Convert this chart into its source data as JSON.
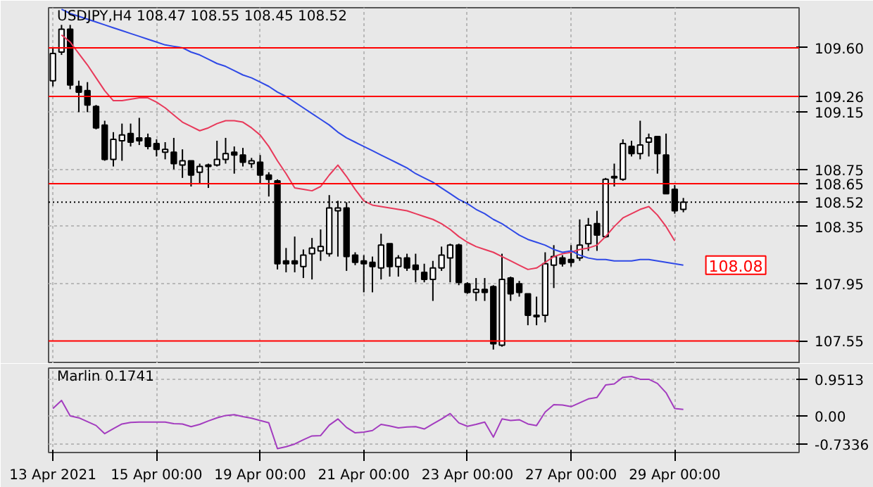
{
  "chart_data": [
    {
      "type": "candlestick",
      "title": "USDJPY,H4 108.47 108.55 108.45 108.52",
      "categories": [
        null,
        null,
        null,
        null,
        null,
        null,
        null,
        null,
        null,
        null,
        null,
        null,
        null,
        null,
        null,
        null,
        null,
        null,
        null,
        null,
        null,
        null,
        null,
        null,
        null,
        null,
        null,
        null,
        null,
        null,
        null,
        null,
        null,
        null,
        null,
        null,
        null,
        null,
        null,
        null,
        null,
        null,
        null,
        null,
        null,
        null,
        null,
        null,
        null,
        null,
        null,
        null,
        null,
        null,
        null,
        null,
        null,
        null,
        null,
        null,
        null,
        null,
        null,
        null,
        null,
        null,
        null,
        null,
        null,
        null,
        null,
        null,
        null,
        null
      ],
      "ohlc": [
        [
          109.37,
          109.6,
          109.33,
          109.56
        ],
        [
          109.57,
          109.76,
          109.55,
          109.73
        ],
        [
          109.73,
          109.76,
          109.31,
          109.34
        ],
        [
          109.33,
          109.37,
          109.15,
          109.29
        ],
        [
          109.3,
          109.36,
          109.15,
          109.2
        ],
        [
          109.19,
          109.2,
          109.03,
          109.04
        ],
        [
          109.06,
          109.09,
          108.81,
          108.82
        ],
        [
          108.82,
          109.01,
          108.77,
          108.96
        ],
        [
          108.95,
          109.07,
          108.81,
          108.99
        ],
        [
          109.0,
          109.07,
          108.91,
          108.94
        ],
        [
          108.97,
          109.11,
          108.92,
          108.95
        ],
        [
          108.97,
          109.0,
          108.89,
          108.91
        ],
        [
          108.93,
          108.96,
          108.84,
          108.89
        ],
        [
          108.87,
          108.94,
          108.82,
          108.89
        ],
        [
          108.87,
          108.97,
          108.75,
          108.79
        ],
        [
          108.78,
          108.89,
          108.69,
          108.81
        ],
        [
          108.81,
          108.81,
          108.63,
          108.71
        ],
        [
          108.73,
          108.79,
          108.65,
          108.77
        ],
        [
          108.78,
          108.79,
          108.62,
          108.77
        ],
        [
          108.78,
          108.95,
          108.77,
          108.82
        ],
        [
          108.82,
          108.97,
          108.79,
          108.86
        ],
        [
          108.87,
          108.91,
          108.72,
          108.85
        ],
        [
          108.85,
          108.9,
          108.77,
          108.8
        ],
        [
          108.79,
          108.83,
          108.76,
          108.81
        ],
        [
          108.8,
          108.85,
          108.65,
          108.71
        ],
        [
          108.71,
          108.73,
          108.56,
          108.68
        ],
        [
          108.67,
          108.68,
          108.05,
          108.09
        ],
        [
          108.11,
          108.2,
          108.03,
          108.09
        ],
        [
          108.11,
          108.28,
          108.03,
          108.09
        ],
        [
          108.07,
          108.19,
          107.99,
          108.15
        ],
        [
          108.16,
          108.27,
          107.98,
          108.2
        ],
        [
          108.18,
          108.33,
          108.11,
          108.21
        ],
        [
          108.16,
          108.57,
          108.14,
          108.48
        ],
        [
          108.46,
          108.53,
          108.14,
          108.48
        ],
        [
          108.48,
          108.52,
          108.04,
          108.14
        ],
        [
          108.15,
          108.17,
          108.08,
          108.1
        ],
        [
          108.11,
          108.15,
          107.89,
          108.09
        ],
        [
          108.1,
          108.14,
          107.89,
          108.07
        ],
        [
          108.06,
          108.3,
          107.98,
          108.22
        ],
        [
          108.23,
          108.23,
          108.0,
          108.07
        ],
        [
          108.07,
          108.15,
          108.0,
          108.13
        ],
        [
          108.13,
          108.16,
          108.04,
          108.06
        ],
        [
          108.08,
          108.16,
          107.96,
          108.05
        ],
        [
          108.03,
          108.09,
          107.96,
          107.98
        ],
        [
          107.98,
          108.11,
          107.83,
          108.06
        ],
        [
          108.06,
          108.21,
          108.04,
          108.15
        ],
        [
          108.13,
          108.23,
          107.96,
          108.22
        ],
        [
          108.22,
          108.23,
          107.94,
          107.96
        ],
        [
          107.95,
          107.96,
          107.88,
          107.89
        ],
        [
          107.89,
          107.99,
          107.83,
          107.91
        ],
        [
          107.91,
          107.99,
          107.83,
          107.89
        ],
        [
          107.93,
          107.94,
          107.49,
          107.53
        ],
        [
          107.52,
          108.16,
          107.51,
          107.98
        ],
        [
          107.99,
          108.0,
          107.83,
          107.88
        ],
        [
          107.95,
          107.97,
          107.86,
          107.89
        ],
        [
          107.88,
          107.88,
          107.66,
          107.73
        ],
        [
          107.72,
          107.86,
          107.66,
          107.73
        ],
        [
          107.73,
          108.17,
          107.68,
          108.09
        ],
        [
          108.08,
          108.22,
          107.92,
          108.14
        ],
        [
          108.13,
          108.15,
          108.07,
          108.09
        ],
        [
          108.12,
          108.22,
          108.07,
          108.1
        ],
        [
          108.13,
          108.4,
          108.11,
          108.22
        ],
        [
          108.23,
          108.41,
          108.18,
          108.36
        ],
        [
          108.37,
          108.46,
          108.18,
          108.29
        ],
        [
          108.28,
          108.69,
          108.27,
          108.68
        ],
        [
          108.69,
          108.79,
          108.63,
          108.7
        ],
        [
          108.68,
          108.96,
          108.67,
          108.93
        ],
        [
          108.91,
          108.95,
          108.84,
          108.86
        ],
        [
          108.86,
          109.09,
          108.82,
          108.92
        ],
        [
          108.94,
          109.0,
          108.84,
          108.97
        ],
        [
          108.98,
          108.98,
          108.72,
          108.86
        ],
        [
          108.85,
          109.0,
          108.58,
          108.58
        ],
        [
          108.61,
          108.64,
          108.44,
          108.46
        ],
        [
          108.47,
          108.55,
          108.45,
          108.52
        ]
      ],
      "series": [
        {
          "type": "line",
          "color": "#e8395a",
          "values": [
            null,
            109.69,
            109.64,
            109.56,
            109.48,
            109.39,
            109.3,
            109.23,
            109.23,
            109.24,
            109.25,
            109.25,
            109.22,
            109.18,
            109.13,
            109.08,
            109.05,
            109.02,
            109.04,
            109.07,
            109.09,
            109.09,
            109.08,
            109.04,
            108.99,
            108.91,
            108.81,
            108.72,
            108.62,
            108.61,
            108.6,
            108.63,
            108.71,
            108.78,
            108.7,
            108.61,
            108.53,
            108.5,
            108.49,
            108.48,
            108.47,
            108.46,
            108.44,
            108.42,
            108.4,
            108.37,
            108.33,
            108.28,
            108.24,
            108.21,
            108.19,
            108.17,
            108.14,
            108.11,
            108.08,
            108.05,
            108.06,
            108.1,
            108.14,
            108.16,
            108.17,
            108.19,
            108.2,
            108.22,
            108.28,
            108.35,
            108.41,
            108.44,
            108.47,
            108.49,
            108.43,
            108.35,
            108.25,
            null
          ]
        },
        {
          "type": "line",
          "color": "#2f49e6",
          "values": [
            null,
            109.87,
            109.84,
            109.82,
            109.8,
            109.78,
            109.76,
            109.74,
            109.72,
            109.7,
            109.68,
            109.66,
            109.64,
            109.62,
            109.61,
            109.6,
            109.57,
            109.55,
            109.52,
            109.49,
            109.47,
            109.44,
            109.41,
            109.39,
            109.36,
            109.33,
            109.29,
            109.26,
            109.22,
            109.18,
            109.14,
            109.1,
            109.06,
            109.01,
            108.97,
            108.94,
            108.91,
            108.88,
            108.85,
            108.82,
            108.79,
            108.76,
            108.72,
            108.69,
            108.66,
            108.62,
            108.58,
            108.54,
            108.51,
            108.47,
            108.44,
            108.4,
            108.37,
            108.33,
            108.29,
            108.26,
            108.24,
            108.22,
            108.19,
            108.17,
            108.18,
            108.15,
            108.13,
            108.12,
            108.12,
            108.11,
            108.11,
            108.11,
            108.12,
            108.12,
            108.11,
            108.1,
            108.09,
            108.08
          ]
        }
      ],
      "ylim": [
        107.39,
        109.88
      ],
      "yticks": [
        107.95,
        108.35,
        108.75,
        109.15
      ],
      "ref_lines": [
        {
          "axis": "y",
          "value": 109.6,
          "label": "109.60",
          "color": "#ff0000"
        },
        {
          "axis": "y",
          "value": 109.26,
          "label": "109.26",
          "color": "#ff0000"
        },
        {
          "axis": "y",
          "value": 108.65,
          "label": "108.65",
          "color": "#ff0000"
        },
        {
          "axis": "y",
          "value": 107.55,
          "label": "107.55",
          "color": "#ff0000"
        },
        {
          "axis": "y",
          "value": 108.52,
          "label": "108.52",
          "color": "#000000",
          "line_style": "dotted"
        }
      ],
      "annotations": [
        "108.08"
      ],
      "grid": true,
      "tick_labels": "y"
    },
    {
      "type": "line",
      "title": "Marlin 0.1741",
      "categories": [
        "13 Apr 2021",
        null,
        null,
        null,
        null,
        null,
        null,
        null,
        null,
        null,
        null,
        null,
        "15 Apr 00:00",
        null,
        null,
        null,
        null,
        null,
        null,
        null,
        null,
        null,
        null,
        null,
        "19 Apr 00:00",
        null,
        null,
        null,
        null,
        null,
        null,
        null,
        null,
        null,
        null,
        null,
        "21 Apr 00:00",
        null,
        null,
        null,
        null,
        null,
        null,
        null,
        null,
        null,
        null,
        null,
        "23 Apr 00:00",
        null,
        null,
        null,
        null,
        null,
        null,
        null,
        null,
        null,
        null,
        null,
        "27 Apr 00:00",
        null,
        null,
        null,
        null,
        null,
        null,
        null,
        null,
        null,
        null,
        null,
        "29 Apr 00:00",
        null
      ],
      "series": [
        {
          "color": "#a33cbf",
          "values": [
            0.19,
            0.4,
            0,
            -0.05,
            -0.15,
            -0.25,
            -0.46,
            -0.33,
            -0.21,
            -0.17,
            -0.16,
            -0.16,
            -0.16,
            -0.16,
            -0.2,
            -0.21,
            -0.28,
            -0.22,
            -0.13,
            -0.05,
            0.01,
            0.03,
            -0.02,
            -0.06,
            -0.12,
            -0.18,
            -0.85,
            -0.8,
            -0.73,
            -0.62,
            -0.52,
            -0.51,
            -0.24,
            -0.08,
            -0.3,
            -0.44,
            -0.42,
            -0.38,
            -0.22,
            -0.26,
            -0.31,
            -0.29,
            -0.28,
            -0.34,
            -0.21,
            -0.08,
            0.06,
            -0.18,
            -0.27,
            -0.22,
            -0.16,
            -0.55,
            -0.08,
            -0.12,
            -0.1,
            -0.21,
            -0.25,
            0.1,
            0.29,
            0.28,
            0.24,
            0.34,
            0.44,
            0.48,
            0.8,
            0.83,
            1.0,
            1.02,
            0.95,
            0.95,
            0.84,
            0.6,
            0.19,
            0.17
          ]
        }
      ],
      "ylim": [
        -0.95,
        1.24
      ],
      "yticks": [
        -0.7336,
        {
          "value": 0,
          "label": "0.00"
        },
        0.9513
      ],
      "grid": true
    }
  ]
}
